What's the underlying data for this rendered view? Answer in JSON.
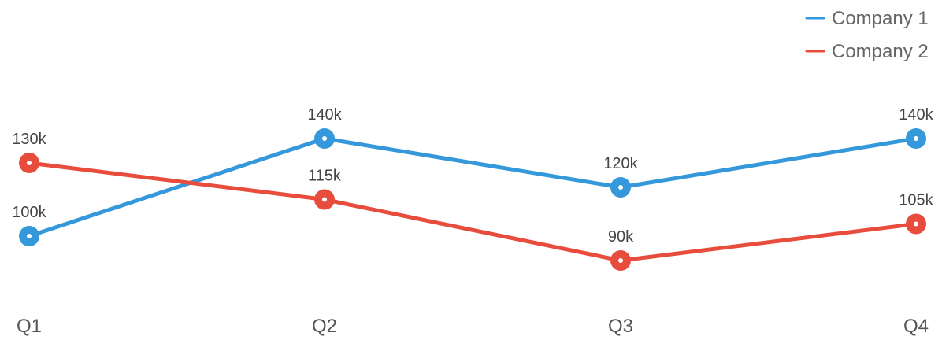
{
  "chart_data": {
    "type": "line",
    "categories": [
      "Q1",
      "Q2",
      "Q3",
      "Q4"
    ],
    "series": [
      {
        "name": "Company 1",
        "color": "#3498db",
        "values": [
          100,
          140,
          120,
          140
        ],
        "labels": [
          "100k",
          "140k",
          "120k",
          "140k"
        ]
      },
      {
        "name": "Company 2",
        "color": "#e74c3c",
        "values": [
          130,
          115,
          90,
          105
        ],
        "labels": [
          "130k",
          "115k",
          "90k",
          "105k"
        ]
      }
    ],
    "unit": "k",
    "grid": false,
    "legend_position": "top-right"
  }
}
